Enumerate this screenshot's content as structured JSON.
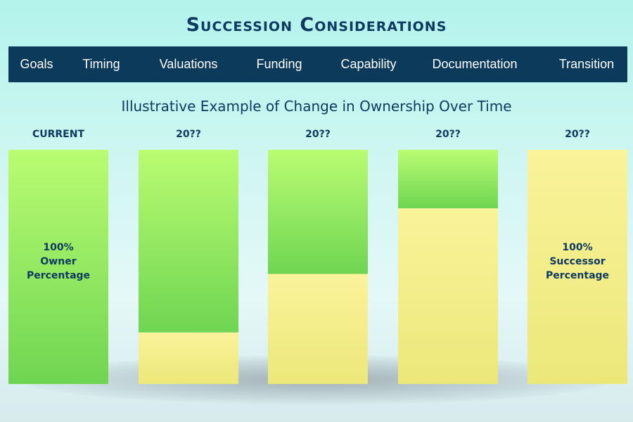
{
  "chart_data": {
    "type": "bar",
    "stacked": true,
    "title": "Succession Considerations",
    "subtitle": "Illustrative Example of Change in Ownership Over Time",
    "categories": [
      "CURRENT",
      "20??",
      "20??",
      "20??",
      "20??"
    ],
    "ylim": [
      0,
      100
    ],
    "series": [
      {
        "name": "Successor",
        "color": "#f8ef8c",
        "values": [
          0,
          22,
          47,
          75,
          100
        ]
      },
      {
        "name": "Owner",
        "color": "#8fe060",
        "values": [
          100,
          78,
          53,
          25,
          0
        ]
      }
    ],
    "annotations": [
      {
        "category_index": 0,
        "lines": [
          "100%",
          "Owner",
          "Percentage"
        ]
      },
      {
        "category_index": 4,
        "lines": [
          "100%",
          "Successor",
          "Percentage"
        ]
      }
    ]
  },
  "nav": {
    "items": [
      "Goals",
      "Timing",
      "Valuations",
      "Funding",
      "Capability",
      "Documentation",
      "Transition"
    ]
  },
  "colors": {
    "nav_background": "#0c3a5b",
    "text": "#0e3a60",
    "owner_top": "#bafc72",
    "owner_bottom": "#6fd552",
    "successor_top": "#faf39a",
    "successor_bottom": "#ebe87a"
  }
}
